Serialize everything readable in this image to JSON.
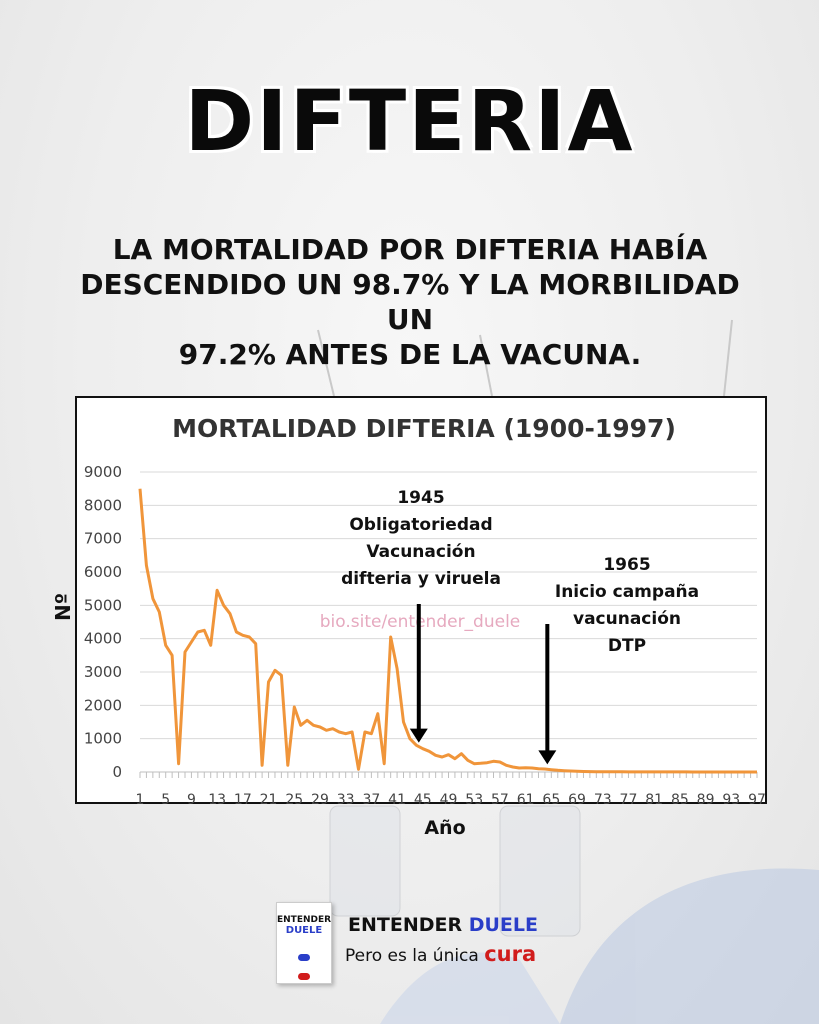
{
  "header": {
    "title": "DIFTERIA",
    "subtitle_lines": [
      "LA MORTALIDAD POR DIFTERIA HABÍA",
      "DESCENDIDO UN 98.7% Y LA MORBILIDAD UN",
      "97.2% ANTES DE LA VACUNA."
    ]
  },
  "chart_data": {
    "type": "line",
    "title": "MORTALIDAD DIFTERIA (1900-1997)",
    "xlabel": "Año",
    "ylabel": "Nº",
    "ylim": [
      0,
      9000
    ],
    "y_ticks": [
      "0",
      "1000",
      "2000",
      "3000",
      "4000",
      "5000",
      "6000",
      "7000",
      "8000",
      "9000"
    ],
    "x_ticks": [
      "1",
      "5",
      "9",
      "13",
      "17",
      "21",
      "25",
      "29",
      "33",
      "37",
      "41",
      "45",
      "49",
      "53",
      "57",
      "61",
      "65",
      "69",
      "73",
      "77",
      "81",
      "85",
      "89",
      "93",
      "97"
    ],
    "grid": true,
    "line_color": "#f0953a",
    "watermark": "bio.site/entender_duele",
    "series": [
      {
        "x": [
          1,
          2,
          3,
          4,
          5,
          6,
          7,
          8,
          9,
          10,
          11,
          12,
          13,
          14,
          15,
          16,
          17,
          18,
          19,
          20,
          21,
          22,
          23,
          24,
          25,
          26,
          27,
          28,
          29,
          30,
          31,
          32,
          33,
          34,
          35,
          36,
          37,
          38,
          39,
          40,
          41,
          42,
          43,
          44,
          45,
          46,
          47,
          48,
          49,
          50,
          51,
          52,
          53,
          54,
          55,
          56,
          57,
          58,
          59,
          60,
          61,
          62,
          63,
          64,
          65,
          66,
          67,
          68,
          69,
          70,
          71,
          72,
          73,
          74,
          75,
          76,
          77,
          78,
          79,
          80,
          81,
          82,
          83,
          84,
          85,
          86,
          87,
          88,
          89,
          90,
          91,
          92,
          93,
          94,
          95,
          96,
          97
        ],
        "values": [
          8500,
          6200,
          5200,
          4800,
          3800,
          3500,
          250,
          3600,
          3900,
          4200,
          4250,
          3800,
          5450,
          5000,
          4750,
          4200,
          4100,
          4050,
          3850,
          200,
          2700,
          3050,
          2900,
          200,
          1950,
          1400,
          1550,
          1400,
          1350,
          1250,
          1300,
          1200,
          1150,
          1200,
          80,
          1200,
          1150,
          1750,
          250,
          4050,
          3100,
          1500,
          1000,
          800,
          700,
          620,
          500,
          450,
          520,
          400,
          550,
          350,
          250,
          260,
          280,
          320,
          300,
          200,
          150,
          120,
          130,
          120,
          100,
          90,
          70,
          50,
          40,
          30,
          20,
          15,
          12,
          10,
          8,
          6,
          5,
          5,
          4,
          4,
          3,
          3,
          3,
          2,
          2,
          2,
          2,
          2,
          1,
          1,
          1,
          1,
          1,
          1,
          1,
          1,
          1,
          1,
          1
        ]
      }
    ],
    "annotations": [
      {
        "lines": [
          "1945",
          "Obligatoriedad",
          "Vacunación",
          "difteria y viruela"
        ],
        "x": 45,
        "arrow_to": 700
      },
      {
        "lines": [
          "1965",
          "Inicio campaña",
          "vacunación",
          "DTP"
        ],
        "x": 65,
        "arrow_to": 50
      }
    ]
  },
  "footer": {
    "book_title_1": "ENTENDER",
    "book_title_2": "DUELE",
    "brand_a": "ENTENDER",
    "brand_b": "DUELE",
    "tagline_a": "Pero es la única",
    "tagline_b": "cura"
  }
}
